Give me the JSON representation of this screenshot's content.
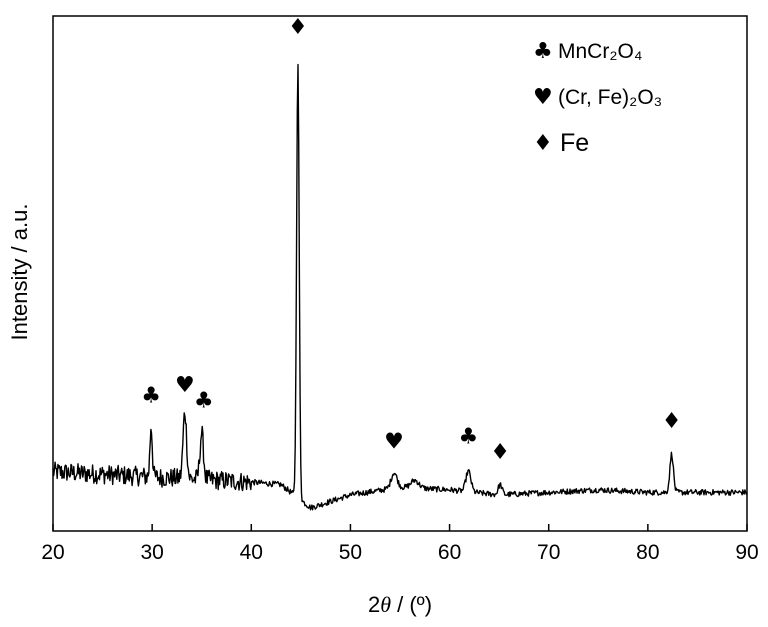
{
  "chart_data": {
    "type": "line",
    "title": "",
    "xlabel": "2θ / (º)",
    "xlabel_parts": {
      "prefix": "2",
      "symbol": "θ",
      "suffix": " / (º)"
    },
    "ylabel": "Intensity / a.u.",
    "xlim": [
      20,
      90
    ],
    "ylim": [
      0,
      100
    ],
    "x_ticks": [
      20,
      30,
      40,
      50,
      60,
      70,
      80,
      90
    ],
    "y_ticks": [],
    "grid": false,
    "line_color": "#000000",
    "series": [
      {
        "name": "",
        "baseline": [
          [
            20,
            11.5
          ],
          [
            25,
            11.0
          ],
          [
            30,
            10.5
          ],
          [
            35,
            10.0
          ],
          [
            40,
            9.5
          ],
          [
            43,
            9.0
          ],
          [
            45,
            6.0
          ],
          [
            46,
            4.5
          ],
          [
            50,
            7.0
          ],
          [
            55,
            8.5
          ],
          [
            60,
            8.0
          ],
          [
            65,
            7.0
          ],
          [
            70,
            7.5
          ],
          [
            75,
            8.0
          ],
          [
            80,
            7.5
          ],
          [
            85,
            7.5
          ],
          [
            90,
            7.5
          ]
        ],
        "peaks": [
          {
            "x": 29.9,
            "height": 10,
            "width": 0.12
          },
          {
            "x": 33.3,
            "height": 13,
            "width": 0.18
          },
          {
            "x": 35.0,
            "height": 9,
            "width": 0.18
          },
          {
            "x": 44.7,
            "height": 84,
            "width": 0.13
          },
          {
            "x": 54.4,
            "height": 3,
            "width": 0.3
          },
          {
            "x": 56.5,
            "height": 1.5,
            "width": 0.4
          },
          {
            "x": 61.9,
            "height": 4,
            "width": 0.25
          },
          {
            "x": 65.1,
            "height": 2,
            "width": 0.2
          },
          {
            "x": 82.4,
            "height": 7.5,
            "width": 0.18
          }
        ]
      }
    ],
    "annotations": [
      {
        "symbol": "♣",
        "phase": "MnCr2O4",
        "x": 29.9,
        "y": 25
      },
      {
        "symbol": "♥",
        "phase": "(Cr, Fe)2O3",
        "x": 33.3,
        "y": 27
      },
      {
        "symbol": "♣",
        "phase": "MnCr2O4",
        "x": 35.2,
        "y": 24
      },
      {
        "symbol": "♦",
        "phase": "Fe",
        "x": 44.7,
        "y": 96.5
      },
      {
        "symbol": "♥",
        "phase": "(Cr, Fe)2O3",
        "x": 54.4,
        "y": 16
      },
      {
        "symbol": "♣",
        "phase": "MnCr2O4",
        "x": 61.9,
        "y": 17
      },
      {
        "symbol": "♦",
        "phase": "Fe",
        "x": 65.1,
        "y": 14
      },
      {
        "symbol": "♦",
        "phase": "Fe",
        "x": 82.4,
        "y": 20
      }
    ],
    "legend_position": "top-right",
    "legend": [
      {
        "symbol": "♣",
        "label": "MnCr₂O₄"
      },
      {
        "symbol": "♥",
        "label": "(Cr, Fe)₂O₃"
      },
      {
        "symbol": "♦",
        "label": "Fe"
      }
    ]
  }
}
